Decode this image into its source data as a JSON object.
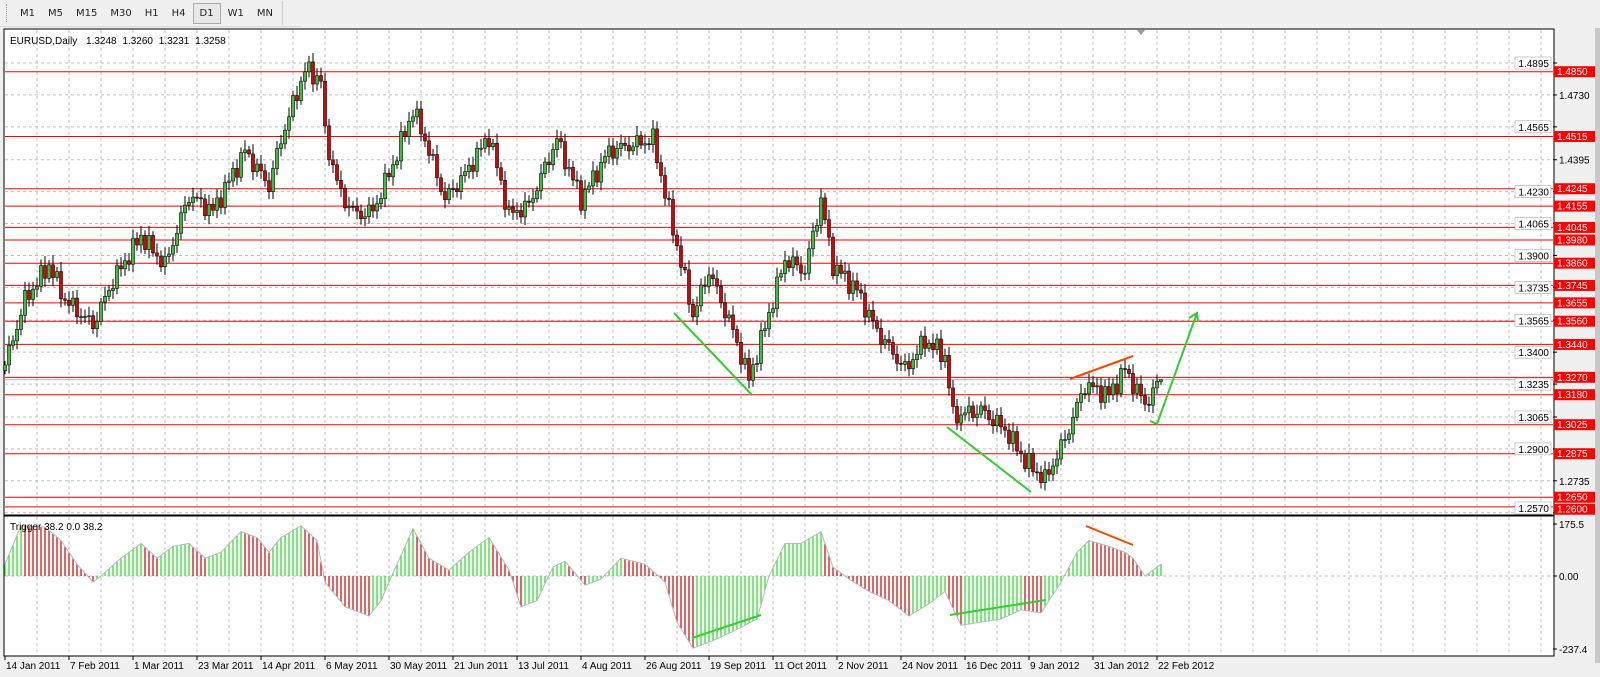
{
  "toolbar": {
    "timeframes": [
      "M1",
      "M5",
      "M15",
      "M30",
      "H1",
      "H4",
      "D1",
      "W1",
      "MN"
    ],
    "active": "D1"
  },
  "header": {
    "symbol": "EURUSD,Daily",
    "open": "1.3248",
    "high": "1.3260",
    "low": "1.3231",
    "close": "1.3258"
  },
  "indicator": {
    "label": "Trigger 38.2 0.0 38.2"
  },
  "colors": {
    "bull": "#3cbf3c",
    "bear": "#dd0000",
    "level": "#ff0000",
    "hist_up": "#22dd22",
    "hist_down": "#d00000",
    "grid": "#c0c0c0",
    "trend_green": "#33cc33",
    "trend_red": "#ff4400"
  },
  "chart_data": [
    {
      "type": "candlestick",
      "title": "EURUSD,Daily",
      "last_bar": {
        "open": 1.3248,
        "high": 1.326,
        "low": 1.3231,
        "close": 1.3258
      },
      "ylim": [
        1.257,
        1.496
      ],
      "grid": true,
      "y_ticks": [
        "1.4895",
        "1.4730",
        "1.4565",
        "1.4395",
        "1.4230",
        "1.4065",
        "1.3900",
        "1.3735",
        "1.3565",
        "1.3400",
        "1.3235",
        "1.3065",
        "1.2900",
        "1.2735",
        "1.2570"
      ],
      "x_ticks": [
        "14 Jan 2011",
        "7 Feb 2011",
        "1 Mar 2011",
        "23 Mar 2011",
        "14 Apr 2011",
        "6 May 2011",
        "30 May 2011",
        "21 Jun 2011",
        "13 Jul 2011",
        "4 Aug 2011",
        "26 Aug 2011",
        "19 Sep 2011",
        "11 Oct 2011",
        "2 Nov 2011",
        "24 Nov 2011",
        "16 Dec 2011",
        "9 Jan 2012",
        "31 Jan 2012",
        "22 Feb 2012"
      ],
      "bar_count": 290,
      "close_keypoints": [
        [
          0,
          1.3334
        ],
        [
          5,
          1.367
        ],
        [
          11,
          1.385
        ],
        [
          15,
          1.367
        ],
        [
          22,
          1.354
        ],
        [
          27,
          1.377
        ],
        [
          34,
          1.4
        ],
        [
          40,
          1.385
        ],
        [
          46,
          1.421
        ],
        [
          52,
          1.413
        ],
        [
          60,
          1.444
        ],
        [
          66,
          1.426
        ],
        [
          69,
          1.45
        ],
        [
          75,
          1.486
        ],
        [
          79,
          1.481
        ],
        [
          80,
          1.452
        ],
        [
          84,
          1.421
        ],
        [
          88,
          1.411
        ],
        [
          92,
          1.413
        ],
        [
          97,
          1.437
        ],
        [
          102,
          1.465
        ],
        [
          105,
          1.45
        ],
        [
          110,
          1.419
        ],
        [
          115,
          1.432
        ],
        [
          121,
          1.452
        ],
        [
          126,
          1.411
        ],
        [
          131,
          1.416
        ],
        [
          138,
          1.45
        ],
        [
          144,
          1.419
        ],
        [
          151,
          1.444
        ],
        [
          162,
          1.45
        ],
        [
          166,
          1.413
        ],
        [
          170,
          1.377
        ],
        [
          172,
          1.359
        ],
        [
          176,
          1.382
        ],
        [
          182,
          1.351
        ],
        [
          186,
          1.326
        ],
        [
          189,
          1.346
        ],
        [
          195,
          1.388
        ],
        [
          200,
          1.382
        ],
        [
          204,
          1.419
        ],
        [
          207,
          1.385
        ],
        [
          213,
          1.372
        ],
        [
          218,
          1.351
        ],
        [
          225,
          1.331
        ],
        [
          230,
          1.346
        ],
        [
          235,
          1.338
        ],
        [
          237,
          1.307
        ],
        [
          244,
          1.31
        ],
        [
          250,
          1.3
        ],
        [
          255,
          1.284
        ],
        [
          260,
          1.274
        ],
        [
          265,
          1.295
        ],
        [
          270,
          1.323
        ],
        [
          276,
          1.318
        ],
        [
          280,
          1.331
        ],
        [
          285,
          1.313
        ],
        [
          289,
          1.3258
        ]
      ],
      "levels": [
        "1.4850",
        "1.4515",
        "1.4245",
        "1.4155",
        "1.4045",
        "1.3980",
        "1.3860",
        "1.3745",
        "1.3655",
        "1.3560",
        "1.3440",
        "1.3270",
        "1.3180",
        "1.3025",
        "1.2875",
        "1.2650",
        "1.2600"
      ],
      "current_price": 1.3258
    },
    {
      "type": "bar",
      "title": "Trigger 38.2 0.0 38.2",
      "ylim": [
        -237.4,
        175.5
      ],
      "y_ticks": [
        "175.5",
        "0.00",
        "-237.4"
      ],
      "value_keypoints": [
        [
          0,
          40
        ],
        [
          4,
          170
        ],
        [
          10,
          165
        ],
        [
          14,
          120
        ],
        [
          18,
          40
        ],
        [
          22,
          -20
        ],
        [
          24,
          0
        ],
        [
          29,
          60
        ],
        [
          34,
          110
        ],
        [
          38,
          60
        ],
        [
          42,
          100
        ],
        [
          46,
          110
        ],
        [
          50,
          60
        ],
        [
          54,
          80
        ],
        [
          59,
          150
        ],
        [
          63,
          130
        ],
        [
          66,
          80
        ],
        [
          69,
          130
        ],
        [
          74,
          170
        ],
        [
          78,
          120
        ],
        [
          80,
          -20
        ],
        [
          85,
          -100
        ],
        [
          91,
          -130
        ],
        [
          94,
          -80
        ],
        [
          98,
          40
        ],
        [
          102,
          160
        ],
        [
          106,
          60
        ],
        [
          111,
          20
        ],
        [
          116,
          80
        ],
        [
          121,
          130
        ],
        [
          126,
          20
        ],
        [
          129,
          -100
        ],
        [
          133,
          -80
        ],
        [
          137,
          30
        ],
        [
          140,
          50
        ],
        [
          145,
          -30
        ],
        [
          149,
          -10
        ],
        [
          154,
          60
        ],
        [
          160,
          40
        ],
        [
          165,
          -20
        ],
        [
          168,
          -150
        ],
        [
          172,
          -235
        ],
        [
          177,
          -210
        ],
        [
          182,
          -180
        ],
        [
          188,
          -140
        ],
        [
          191,
          0
        ],
        [
          195,
          110
        ],
        [
          199,
          110
        ],
        [
          204,
          150
        ],
        [
          207,
          30
        ],
        [
          211,
          -10
        ],
        [
          216,
          -50
        ],
        [
          221,
          -80
        ],
        [
          226,
          -130
        ],
        [
          231,
          -90
        ],
        [
          235,
          -50
        ],
        [
          239,
          -160
        ],
        [
          244,
          -150
        ],
        [
          249,
          -140
        ],
        [
          254,
          -110
        ],
        [
          259,
          -120
        ],
        [
          264,
          -20
        ],
        [
          268,
          80
        ],
        [
          271,
          120
        ],
        [
          276,
          100
        ],
        [
          280,
          80
        ],
        [
          282,
          60
        ],
        [
          285,
          0
        ],
        [
          287,
          20
        ],
        [
          289,
          40
        ]
      ]
    }
  ]
}
